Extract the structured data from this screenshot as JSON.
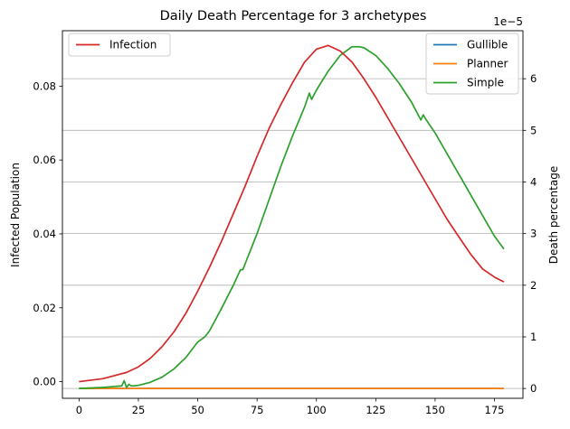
{
  "chart_data": {
    "type": "line",
    "title": "Daily Death Percentage for 3 archetypes",
    "xlim": [
      -7,
      187
    ],
    "x_ticks": [
      0,
      25,
      50,
      75,
      100,
      125,
      150,
      175
    ],
    "left_axis": {
      "label": "Infected Population",
      "ylim": [
        -0.0045,
        0.095
      ],
      "ticks": [
        0.0,
        0.02,
        0.04,
        0.06,
        0.08
      ],
      "tick_labels": [
        "0.00",
        "0.02",
        "0.04",
        "0.06",
        "0.08"
      ]
    },
    "right_axis": {
      "label": "Death percentage",
      "offset_text": "1e−5",
      "ylim": [
        -0.19,
        6.93
      ],
      "ticks": [
        0,
        1,
        2,
        3,
        4,
        5,
        6
      ],
      "tick_labels": [
        "0",
        "1",
        "2",
        "3",
        "4",
        "5",
        "6"
      ],
      "grid": true
    },
    "legend_left": {
      "placement": "upper-left",
      "entries": [
        "Infection"
      ]
    },
    "legend_right": {
      "placement": "upper-right",
      "entries": [
        "Gullible",
        "Planner",
        "Simple"
      ]
    },
    "colors": {
      "Infection": "#d62728",
      "Gullible": "#1f77b4",
      "Planner": "#ff7f0e",
      "Simple": "#2ca02c"
    },
    "series": [
      {
        "name": "Infection",
        "axis": "left",
        "x": [
          0,
          10,
          20,
          25,
          30,
          35,
          40,
          45,
          50,
          55,
          60,
          65,
          70,
          75,
          80,
          85,
          90,
          95,
          100,
          105,
          110,
          115,
          120,
          125,
          130,
          135,
          140,
          145,
          150,
          155,
          160,
          165,
          170,
          175,
          179
        ],
        "y": [
          0.0,
          0.0008,
          0.0025,
          0.004,
          0.0063,
          0.0095,
          0.0135,
          0.0185,
          0.0245,
          0.031,
          0.038,
          0.0455,
          0.053,
          0.061,
          0.0685,
          0.075,
          0.081,
          0.0865,
          0.09,
          0.091,
          0.0895,
          0.0865,
          0.082,
          0.077,
          0.0715,
          0.066,
          0.0605,
          0.055,
          0.0495,
          0.044,
          0.0392,
          0.0345,
          0.0305,
          0.0283,
          0.027
        ]
      },
      {
        "name": "Gullible",
        "axis": "right",
        "x": [
          0,
          179
        ],
        "y": [
          0,
          0
        ]
      },
      {
        "name": "Planner",
        "axis": "right",
        "x": [
          0,
          179
        ],
        "y": [
          0,
          0
        ]
      },
      {
        "name": "Simple",
        "axis": "right",
        "x": [
          0,
          10,
          18,
          19,
          20,
          21,
          22,
          23,
          25,
          30,
          35,
          40,
          45,
          50,
          53,
          55,
          60,
          65,
          68,
          69,
          70,
          75,
          80,
          85,
          90,
          95,
          97,
          98,
          100,
          105,
          110,
          115,
          118,
          120,
          125,
          130,
          135,
          140,
          144,
          145,
          146,
          150,
          155,
          160,
          165,
          170,
          175,
          179
        ],
        "y": [
          0,
          0.02,
          0.05,
          0.15,
          0.02,
          0.08,
          0.05,
          0.05,
          0.06,
          0.12,
          0.22,
          0.38,
          0.6,
          0.9,
          1.0,
          1.12,
          1.55,
          2.0,
          2.3,
          2.3,
          2.42,
          3.0,
          3.65,
          4.3,
          4.9,
          5.45,
          5.72,
          5.6,
          5.78,
          6.15,
          6.45,
          6.62,
          6.62,
          6.6,
          6.45,
          6.2,
          5.9,
          5.55,
          5.2,
          5.3,
          5.22,
          4.95,
          4.55,
          4.15,
          3.75,
          3.35,
          2.95,
          2.7
        ]
      }
    ]
  }
}
